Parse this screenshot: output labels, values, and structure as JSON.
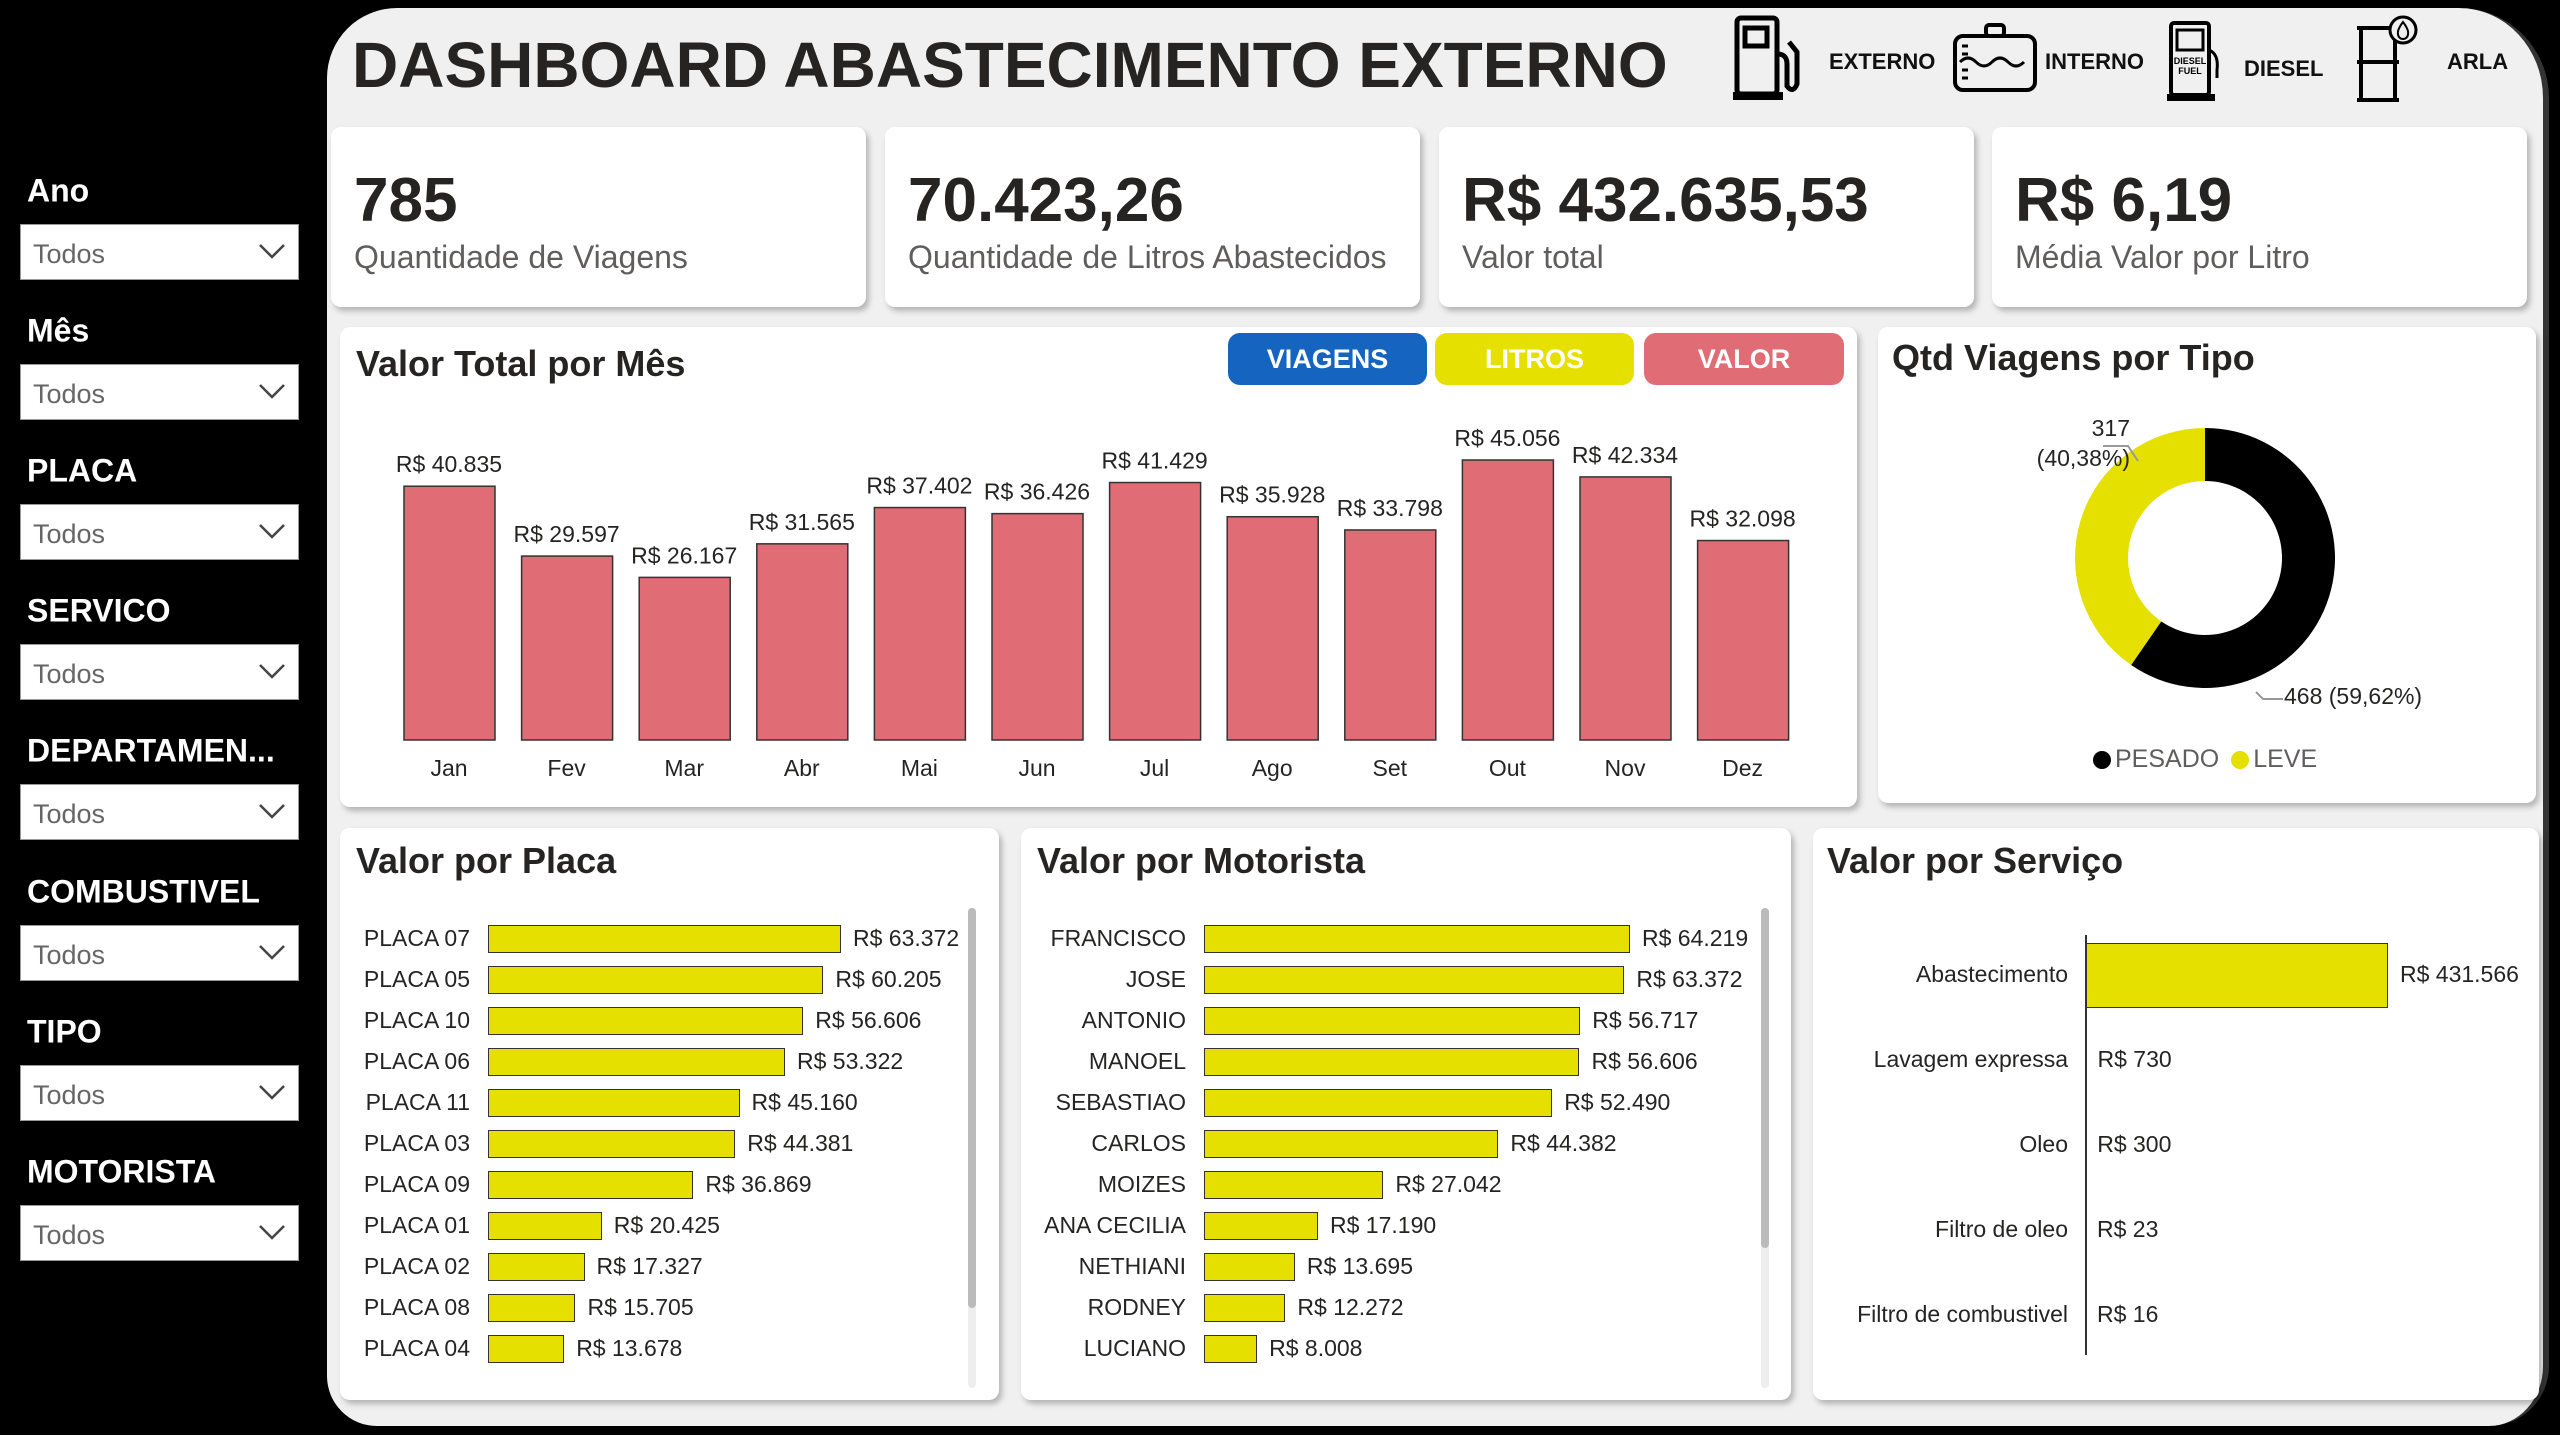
{
  "title": "DASHBOARD ABASTECIMENTO EXTERNO",
  "header_icons": [
    {
      "icon": "fuel-pump-icon",
      "label": "EXTERNO"
    },
    {
      "icon": "tank-icon",
      "label": "INTERNO"
    },
    {
      "icon": "diesel-pump-icon",
      "label": "DIESEL",
      "icon_text": "DIESEL FUEL"
    },
    {
      "icon": "barrel-drop-icon",
      "label": "ARLA"
    }
  ],
  "filters": [
    {
      "label": "Ano",
      "value": "Todos"
    },
    {
      "label": "Mês",
      "value": "Todos"
    },
    {
      "label": "PLACA",
      "value": "Todos"
    },
    {
      "label": "SERVICO",
      "value": "Todos"
    },
    {
      "label": "DEPARTAMEN...",
      "value": "Todos"
    },
    {
      "label": "COMBUSTIVEL",
      "value": "Todos"
    },
    {
      "label": "TIPO",
      "value": "Todos"
    },
    {
      "label": "MOTORISTA",
      "value": "Todos"
    }
  ],
  "kpis": [
    {
      "value": "785",
      "label": "Quantidade de Viagens"
    },
    {
      "value": "70.423,26",
      "label": "Quantidade de Litros Abastecidos"
    },
    {
      "value": "R$ 432.635,53",
      "label": "Valor total"
    },
    {
      "value": "R$ 6,19",
      "label": "Média Valor por Litro"
    }
  ],
  "buttons": [
    {
      "label": "VIAGENS",
      "color": "#1565c0"
    },
    {
      "label": "LITROS",
      "color": "#e5e000"
    },
    {
      "label": "VALOR",
      "color": "#e06c75"
    }
  ],
  "colors": {
    "yellow": "#e5e000",
    "red": "#e06c75",
    "black": "#000000"
  },
  "chart_data": [
    {
      "type": "bar",
      "title": "Valor Total por Mês",
      "categories": [
        "Jan",
        "Fev",
        "Mar",
        "Abr",
        "Mai",
        "Jun",
        "Jul",
        "Ago",
        "Set",
        "Out",
        "Nov",
        "Dez"
      ],
      "values": [
        40835,
        29597,
        26167,
        31565,
        37402,
        36426,
        41429,
        35928,
        33798,
        45056,
        42334,
        32098
      ],
      "labels": [
        "R$ 40.835",
        "R$ 29.597",
        "R$ 26.167",
        "R$ 31.565",
        "R$ 37.402",
        "R$ 36.426",
        "R$ 41.429",
        "R$ 35.928",
        "R$ 33.798",
        "R$ 45.056",
        "R$ 42.334",
        "R$ 32.098"
      ]
    },
    {
      "type": "pie",
      "title": "Qtd Viagens por Tipo",
      "categories": [
        "PESADO",
        "LEVE"
      ],
      "values": [
        468,
        317
      ],
      "labels": [
        "468 (59,62%)",
        "317",
        "(40,38%)"
      ],
      "legend": "bottom"
    },
    {
      "type": "bar",
      "orientation": "horizontal",
      "title": "Valor por Placa",
      "categories": [
        "PLACA 07",
        "PLACA 05",
        "PLACA 10",
        "PLACA 06",
        "PLACA 11",
        "PLACA 03",
        "PLACA 09",
        "PLACA 01",
        "PLACA 02",
        "PLACA 08",
        "PLACA 04"
      ],
      "values": [
        63372,
        60205,
        56606,
        53322,
        45160,
        44381,
        36869,
        20425,
        17327,
        15705,
        13678
      ],
      "labels": [
        "R$ 63.372",
        "R$ 60.205",
        "R$ 56.606",
        "R$ 53.322",
        "R$ 45.160",
        "R$ 44.381",
        "R$ 36.869",
        "R$ 20.425",
        "R$ 17.327",
        "R$ 15.705",
        "R$ 13.678"
      ]
    },
    {
      "type": "bar",
      "orientation": "horizontal",
      "title": "Valor por Motorista",
      "categories": [
        "FRANCISCO",
        "JOSE",
        "ANTONIO",
        "MANOEL",
        "SEBASTIAO",
        "CARLOS",
        "MOIZES",
        "ANA CECILIA",
        "NETHIANI",
        "RODNEY",
        "LUCIANO"
      ],
      "values": [
        64219,
        63372,
        56717,
        56606,
        52490,
        44382,
        27042,
        17190,
        13695,
        12272,
        8008
      ],
      "labels": [
        "R$ 64.219",
        "R$ 63.372",
        "R$ 56.717",
        "R$ 56.606",
        "R$ 52.490",
        "R$ 44.382",
        "R$ 27.042",
        "R$ 17.190",
        "R$ 13.695",
        "R$ 12.272",
        "R$ 8.008"
      ]
    },
    {
      "type": "bar",
      "orientation": "horizontal",
      "title": "Valor por Serviço",
      "categories": [
        "Abastecimento",
        "Lavagem expressa",
        "Oleo",
        "Filtro de oleo",
        "Filtro de combustivel"
      ],
      "values": [
        431566,
        730,
        300,
        23,
        16
      ],
      "labels": [
        "R$ 431.566",
        "R$ 730",
        "R$ 300",
        "R$ 23",
        "R$ 16"
      ]
    }
  ]
}
